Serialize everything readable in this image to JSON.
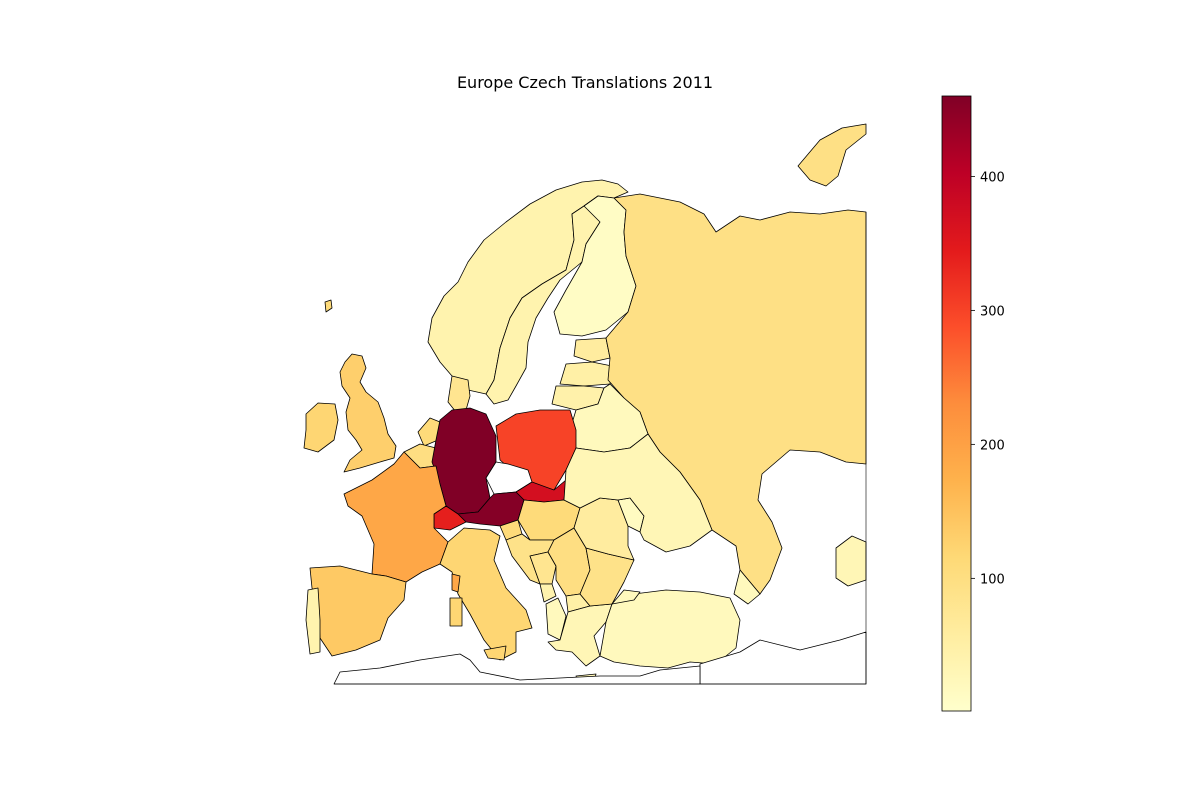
{
  "title": "Europe Czech Translations 2011",
  "colorbar": {
    "colormap": "YlOrRd",
    "range": [
      1,
      460
    ],
    "stops": [
      "#ffffcc",
      "#ffeda0",
      "#fed976",
      "#feb24c",
      "#fd8d3c",
      "#fc4e2a",
      "#e31a1c",
      "#bd0026",
      "#800026"
    ],
    "ticks": [
      100,
      200,
      300,
      400
    ],
    "tick_labels": [
      "100",
      "200",
      "300",
      "400"
    ]
  },
  "map": {
    "ocean_color": "#ffffff",
    "border_color": "#000000",
    "regions": [
      {
        "name": "Germany",
        "value": 460
      },
      {
        "name": "Austria",
        "value": 455
      },
      {
        "name": "Switzerland",
        "value": 340
      },
      {
        "name": "Slovakia",
        "value": 370
      },
      {
        "name": "Poland",
        "value": 300
      },
      {
        "name": "France",
        "value": 190
      },
      {
        "name": "Spain",
        "value": 140
      },
      {
        "name": "Portugal",
        "value": 40
      },
      {
        "name": "Italy",
        "value": 120
      },
      {
        "name": "United Kingdom",
        "value": 130
      },
      {
        "name": "Ireland",
        "value": 120
      },
      {
        "name": "Netherlands",
        "value": 110
      },
      {
        "name": "Belgium",
        "value": 100
      },
      {
        "name": "Denmark",
        "value": 80
      },
      {
        "name": "Norway",
        "value": 40
      },
      {
        "name": "Sweden",
        "value": 40
      },
      {
        "name": "Finland",
        "value": 10
      },
      {
        "name": "Iceland",
        "value": 110
      },
      {
        "name": "Russia",
        "value": 95
      },
      {
        "name": "Estonia",
        "value": 60
      },
      {
        "name": "Latvia",
        "value": 50
      },
      {
        "name": "Lithuania",
        "value": 45
      },
      {
        "name": "Belarus",
        "value": 20
      },
      {
        "name": "Ukraine",
        "value": 30
      },
      {
        "name": "Moldova",
        "value": 15
      },
      {
        "name": "Hungary",
        "value": 110
      },
      {
        "name": "Slovenia",
        "value": 110
      },
      {
        "name": "Croatia",
        "value": 90
      },
      {
        "name": "Bosnia and Herzegovina",
        "value": 80
      },
      {
        "name": "Serbia",
        "value": 100
      },
      {
        "name": "Montenegro",
        "value": 40
      },
      {
        "name": "Albania",
        "value": 20
      },
      {
        "name": "North Macedonia",
        "value": 50
      },
      {
        "name": "Greece",
        "value": 30
      },
      {
        "name": "Bulgaria",
        "value": 90
      },
      {
        "name": "Romania",
        "value": 60
      },
      {
        "name": "Turkey",
        "value": 20
      },
      {
        "name": "Georgia",
        "value": 20
      },
      {
        "name": "Kazakhstan",
        "value": 30
      }
    ]
  }
}
